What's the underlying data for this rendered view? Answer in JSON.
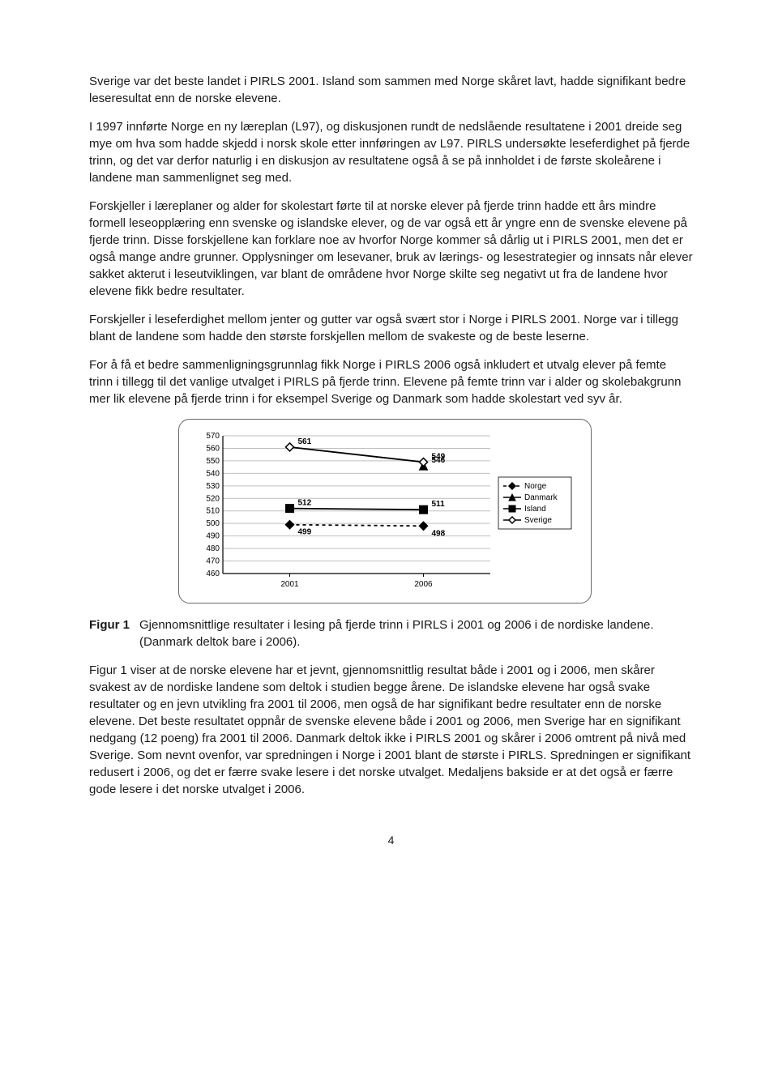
{
  "paragraphs": {
    "p1": "Sverige var det beste landet i PIRLS 2001. Island som sammen med Norge skåret lavt, hadde signifikant bedre leseresultat enn de norske elevene.",
    "p2": "I 1997 innførte Norge en ny læreplan (L97), og diskusjonen rundt de nedslående resultatene i 2001 dreide seg mye om hva som hadde skjedd i norsk skole etter innføringen av L97. PIRLS undersøkte leseferdighet på fjerde trinn, og det var derfor naturlig i en diskusjon av resultatene også å se på innholdet i de første skoleårene i landene man sammenlignet seg med.",
    "p3": "Forskjeller i læreplaner og alder for skolestart førte til at norske elever på fjerde trinn hadde ett års mindre formell leseopplæring enn svenske og islandske elever, og de var også ett år yngre enn de svenske elevene på fjerde trinn. Disse forskjellene kan forklare noe av hvorfor Norge kommer så dårlig ut i PIRLS 2001, men det er også mange andre grunner. Opplysninger om lesevaner, bruk av lærings- og lesestrategier og innsats når elever sakket akterut i leseutviklingen, var blant de områdene hvor Norge skilte seg negativt ut fra de landene hvor elevene fikk bedre resultater.",
    "p4": "Forskjeller i leseferdighet mellom jenter og gutter var også svært stor i Norge i PIRLS 2001. Norge var i tillegg blant de landene som hadde den største forskjellen mellom de svakeste og de beste leserne.",
    "p5": "For å få et bedre sammenligningsgrunnlag fikk Norge i PIRLS 2006 også inkludert et utvalg elever på femte trinn i tillegg til det vanlige utvalget i PIRLS på fjerde trinn. Elevene på femte trinn var i alder og skolebakgrunn mer lik elevene på fjerde trinn i for eksempel Sverige og Danmark som hadde skolestart ved syv år.",
    "p6": "Figur 1 viser at de norske elevene har et jevnt, gjennomsnittlig resultat både i 2001 og i 2006, men skårer svakest av de nordiske landene som deltok i studien begge årene. De islandske elevene har også svake resultater og en jevn utvikling fra 2001 til 2006, men også de har signifikant bedre resultater enn de norske elevene. Det beste resultatet oppnår de svenske elevene både i 2001 og 2006, men Sverige har en signifikant nedgang (12 poeng) fra 2001 til 2006. Danmark deltok ikke i PIRLS 2001 og skårer i 2006 omtrent på nivå med Sverige. Som nevnt ovenfor, var spredningen i Norge i 2001 blant de største i PIRLS. Spredningen er signifikant redusert i 2006, og det er færre svake lesere i det norske utvalget. Medaljens bakside er at det også er færre gode lesere i det norske utvalget i 2006."
  },
  "figure": {
    "label": "Figur 1",
    "caption": "Gjennomsnittlige resultater i lesing på fjerde trinn i PIRLS i 2001 og 2006 i de nordiske landene. (Danmark deltok bare i 2006)."
  },
  "chart": {
    "type": "line",
    "x_categories": [
      "2001",
      "2006"
    ],
    "ylim": [
      460,
      570
    ],
    "ytick_step": 10,
    "yticks": [
      460,
      470,
      480,
      490,
      500,
      510,
      520,
      530,
      540,
      550,
      560,
      570
    ],
    "series": [
      {
        "name": "Norge",
        "marker": "diamond-filled",
        "color": "#000000",
        "dash": "4 4",
        "values": [
          499,
          498
        ],
        "labels": [
          "499",
          "498"
        ]
      },
      {
        "name": "Danmark",
        "marker": "triangle-filled",
        "color": "#000000",
        "dash": "",
        "values": [
          null,
          546
        ],
        "labels": [
          null,
          "546"
        ]
      },
      {
        "name": "Island",
        "marker": "square-filled",
        "color": "#000000",
        "dash": "",
        "values": [
          512,
          511
        ],
        "labels": [
          "512",
          "511"
        ]
      },
      {
        "name": "Sverige",
        "marker": "diamond-open",
        "color": "#000000",
        "dash": "",
        "values": [
          561,
          549
        ],
        "labels": [
          "561",
          "549"
        ]
      }
    ],
    "legend_items": [
      "Norge",
      "Danmark",
      "Island",
      "Sverige"
    ],
    "plot_bg": "#ffffff",
    "grid_color": "#bfbfbf",
    "axis_color": "#000000",
    "text_color": "#000000",
    "tick_fontsize": 10,
    "datalabel_fontsize": 10,
    "datalabel_weight": "bold",
    "legend_fontsize": 10,
    "line_width": 1.8
  },
  "page_number": "4"
}
